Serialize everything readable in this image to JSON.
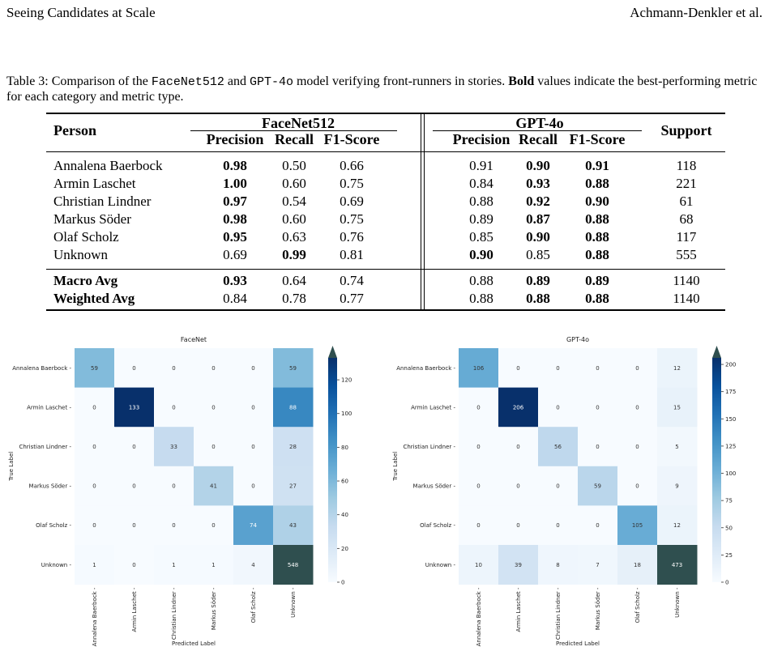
{
  "header": {
    "left": "Seeing Candidates at Scale",
    "right": "Achmann-Denkler et al."
  },
  "caption": {
    "prefix": "Table 3: Comparison of the ",
    "model_a": "FaceNet512",
    "mid1": " and ",
    "model_b": "GPT-4o",
    "mid2": " model verifying front-runners in stories. ",
    "bold_word": "Bold",
    "suffix": " values indicate the best-performing metric for each category and metric type."
  },
  "table": {
    "person_header": "Person",
    "group_a": "FaceNet512",
    "group_b": "GPT-4o",
    "support_header": "Support",
    "metric_headers": [
      "Precision",
      "Recall",
      "F1-Score"
    ],
    "rows": [
      {
        "name": "Annalena Baerbock",
        "fn": [
          "0.98",
          "0.50",
          "0.66"
        ],
        "fn_bold": [
          true,
          false,
          false
        ],
        "gpt": [
          "0.91",
          "0.90",
          "0.91"
        ],
        "gpt_bold": [
          false,
          true,
          true
        ],
        "support": "118"
      },
      {
        "name": "Armin Laschet",
        "fn": [
          "1.00",
          "0.60",
          "0.75"
        ],
        "fn_bold": [
          true,
          false,
          false
        ],
        "gpt": [
          "0.84",
          "0.93",
          "0.88"
        ],
        "gpt_bold": [
          false,
          true,
          true
        ],
        "support": "221"
      },
      {
        "name": "Christian Lindner",
        "fn": [
          "0.97",
          "0.54",
          "0.69"
        ],
        "fn_bold": [
          true,
          false,
          false
        ],
        "gpt": [
          "0.88",
          "0.92",
          "0.90"
        ],
        "gpt_bold": [
          false,
          true,
          true
        ],
        "support": "61"
      },
      {
        "name": "Markus Söder",
        "fn": [
          "0.98",
          "0.60",
          "0.75"
        ],
        "fn_bold": [
          true,
          false,
          false
        ],
        "gpt": [
          "0.89",
          "0.87",
          "0.88"
        ],
        "gpt_bold": [
          false,
          true,
          true
        ],
        "support": "68"
      },
      {
        "name": "Olaf Scholz",
        "fn": [
          "0.95",
          "0.63",
          "0.76"
        ],
        "fn_bold": [
          true,
          false,
          false
        ],
        "gpt": [
          "0.85",
          "0.90",
          "0.88"
        ],
        "gpt_bold": [
          false,
          true,
          true
        ],
        "support": "117"
      },
      {
        "name": "Unknown",
        "fn": [
          "0.69",
          "0.99",
          "0.81"
        ],
        "fn_bold": [
          false,
          true,
          false
        ],
        "gpt": [
          "0.90",
          "0.85",
          "0.88"
        ],
        "gpt_bold": [
          true,
          false,
          true
        ],
        "support": "555"
      }
    ],
    "avg_rows": [
      {
        "name": "Macro Avg",
        "fn": [
          "0.93",
          "0.64",
          "0.74"
        ],
        "fn_bold": [
          true,
          false,
          false
        ],
        "gpt": [
          "0.88",
          "0.89",
          "0.89"
        ],
        "gpt_bold": [
          false,
          true,
          true
        ],
        "support": "1140"
      },
      {
        "name": "Weighted Avg",
        "fn": [
          "0.84",
          "0.78",
          "0.77"
        ],
        "fn_bold": [
          false,
          false,
          false
        ],
        "gpt": [
          "0.88",
          "0.88",
          "0.88"
        ],
        "gpt_bold": [
          false,
          true,
          true
        ],
        "support": "1140"
      }
    ]
  },
  "chart_data": [
    {
      "type": "heatmap",
      "title": "FaceNet",
      "xlabel": "Predicted Label",
      "ylabel": "True Label",
      "categories": [
        "Annalena Baerbock",
        "Armin Laschet",
        "Christian Lindner",
        "Markus Söder",
        "Olaf Scholz",
        "Unknown"
      ],
      "matrix": [
        [
          59,
          0,
          0,
          0,
          0,
          59
        ],
        [
          0,
          133,
          0,
          0,
          0,
          88
        ],
        [
          0,
          0,
          33,
          0,
          0,
          28
        ],
        [
          0,
          0,
          0,
          41,
          0,
          27
        ],
        [
          0,
          0,
          0,
          0,
          74,
          43
        ],
        [
          1,
          0,
          1,
          1,
          4,
          548
        ]
      ],
      "colorbar_range": [
        0,
        133
      ],
      "colorbar_ticks": [
        0,
        20,
        40,
        60,
        80,
        100,
        120
      ],
      "colormap": "Blues, values above the colorbar maximum shown in dark slate #2f4f4f"
    },
    {
      "type": "heatmap",
      "title": "GPT-4o",
      "xlabel": "Predicted Label",
      "ylabel": "True Label",
      "categories": [
        "Annalena Baerbock",
        "Armin Laschet",
        "Christian Lindner",
        "Markus Söder",
        "Olaf Scholz",
        "Unknown"
      ],
      "matrix": [
        [
          106,
          0,
          0,
          0,
          0,
          12
        ],
        [
          0,
          206,
          0,
          0,
          0,
          15
        ],
        [
          0,
          0,
          56,
          0,
          0,
          5
        ],
        [
          0,
          0,
          0,
          59,
          0,
          9
        ],
        [
          0,
          0,
          0,
          0,
          105,
          12
        ],
        [
          10,
          39,
          8,
          7,
          18,
          473
        ]
      ],
      "colorbar_range": [
        0,
        206
      ],
      "colorbar_ticks": [
        0,
        25,
        50,
        75,
        100,
        125,
        150,
        175,
        200
      ],
      "colormap": "Blues, values above the colorbar maximum shown in dark slate #2f4f4f"
    }
  ],
  "colors": {
    "blue_low": "#f7fbff",
    "blue_high": "#08306b",
    "over": "#2f4f4f"
  }
}
